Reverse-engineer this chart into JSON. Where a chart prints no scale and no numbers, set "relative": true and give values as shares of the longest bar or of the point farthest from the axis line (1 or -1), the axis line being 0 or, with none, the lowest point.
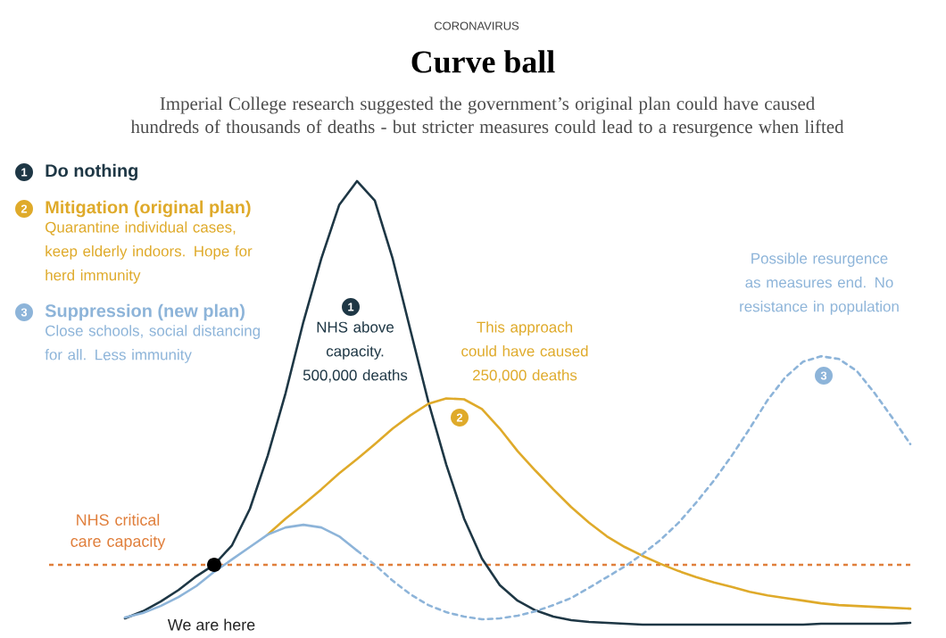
{
  "chart_data": {
    "type": "line",
    "relative": true,
    "title": "Curve ball",
    "subtitle": "Imperial College research suggested the government’s original plan could have caused hundreds of thousands of deaths - but stricter measures could lead to a resurgence when lifted",
    "categories": [
      null,
      null,
      null,
      null,
      null,
      null,
      null,
      null,
      null,
      null,
      null,
      null,
      null,
      null,
      null,
      null,
      null,
      null,
      null,
      null,
      null,
      null,
      null,
      null,
      null,
      null,
      null,
      null,
      null,
      null,
      null,
      null,
      null,
      null,
      null,
      null,
      null,
      null,
      null,
      null,
      null,
      null,
      null,
      null,
      null
    ],
    "legend": "top left",
    "series": [
      {
        "name": "Do nothing",
        "color": "#1e3745",
        "line_style": "solid",
        "values": [
          0.014,
          0.03,
          0.052,
          0.078,
          0.109,
          0.135,
          0.179,
          0.261,
          0.381,
          0.522,
          0.683,
          0.825,
          0.946,
          1,
          0.956,
          0.825,
          0.663,
          0.502,
          0.361,
          0.239,
          0.149,
          0.089,
          0.054,
          0.032,
          0.018,
          0.01,
          0.006,
          0.004,
          0.002,
          0,
          0,
          0,
          0,
          0,
          0,
          0,
          0,
          0,
          0,
          0.002,
          0.002,
          0.002,
          0.002,
          0.002,
          0.004
        ]
      },
      {
        "name": "Mitigation (original plan)",
        "color": "#dfaa2a",
        "line_style": "solid",
        "values": [
          null,
          null,
          null,
          null,
          null,
          null,
          null,
          null,
          0.203,
          0.239,
          0.271,
          0.305,
          0.341,
          0.373,
          0.407,
          0.442,
          0.472,
          0.498,
          0.51,
          0.508,
          0.486,
          0.442,
          0.391,
          0.347,
          0.305,
          0.265,
          0.23,
          0.199,
          0.175,
          0.155,
          0.137,
          0.121,
          0.107,
          0.095,
          0.085,
          0.074,
          0.066,
          0.06,
          0.054,
          0.048,
          0.044,
          0.042,
          0.04,
          0.038,
          0.036
        ]
      },
      {
        "name": "Suppression (new plan)",
        "color": "#8db4d9",
        "line_style": "solid",
        "values": [
          0.016,
          0.026,
          0.042,
          0.062,
          0.087,
          0.119,
          0.147,
          0.175,
          0.203,
          0.219,
          0.225,
          0.219,
          0.199,
          0.167,
          null,
          null,
          null,
          null,
          null,
          null,
          null,
          null,
          null,
          null,
          null,
          null,
          null,
          null,
          null,
          null,
          null,
          null,
          null,
          null,
          null,
          null,
          null,
          null,
          null,
          null,
          null,
          null,
          null,
          null,
          null
        ]
      },
      {
        "color": "#8db4d9",
        "line_style": "dashed",
        "values": [
          null,
          null,
          null,
          null,
          null,
          null,
          null,
          null,
          null,
          null,
          null,
          null,
          null,
          0.167,
          0.135,
          0.099,
          0.068,
          0.044,
          0.028,
          0.018,
          0.012,
          0.014,
          0.02,
          0.03,
          0.044,
          0.06,
          0.083,
          0.107,
          0.131,
          0.159,
          0.191,
          0.229,
          0.275,
          0.325,
          0.381,
          0.442,
          0.506,
          0.558,
          0.593,
          0.605,
          0.599,
          0.572,
          0.522,
          0.466,
          0.407
        ]
      }
    ],
    "ref_lines": [
      {
        "axis": "y",
        "value": 0.135,
        "label": "NHS critical care capacity",
        "color": "#e07f3c",
        "line_style": "dashed"
      }
    ],
    "annotations": [
      "CORONAVIRUS",
      "1",
      "2",
      "3",
      "Quarantine individual cases, keep elderly indoors. Hope for herd immunity",
      "Close schools, social distancing for all. Less immunity",
      "NHS above capacity. 500,000 deaths",
      "This approach could have caused 250,000 deaths",
      "Possible resurgence as measures end. No resistance in population",
      "We are here"
    ]
  }
}
